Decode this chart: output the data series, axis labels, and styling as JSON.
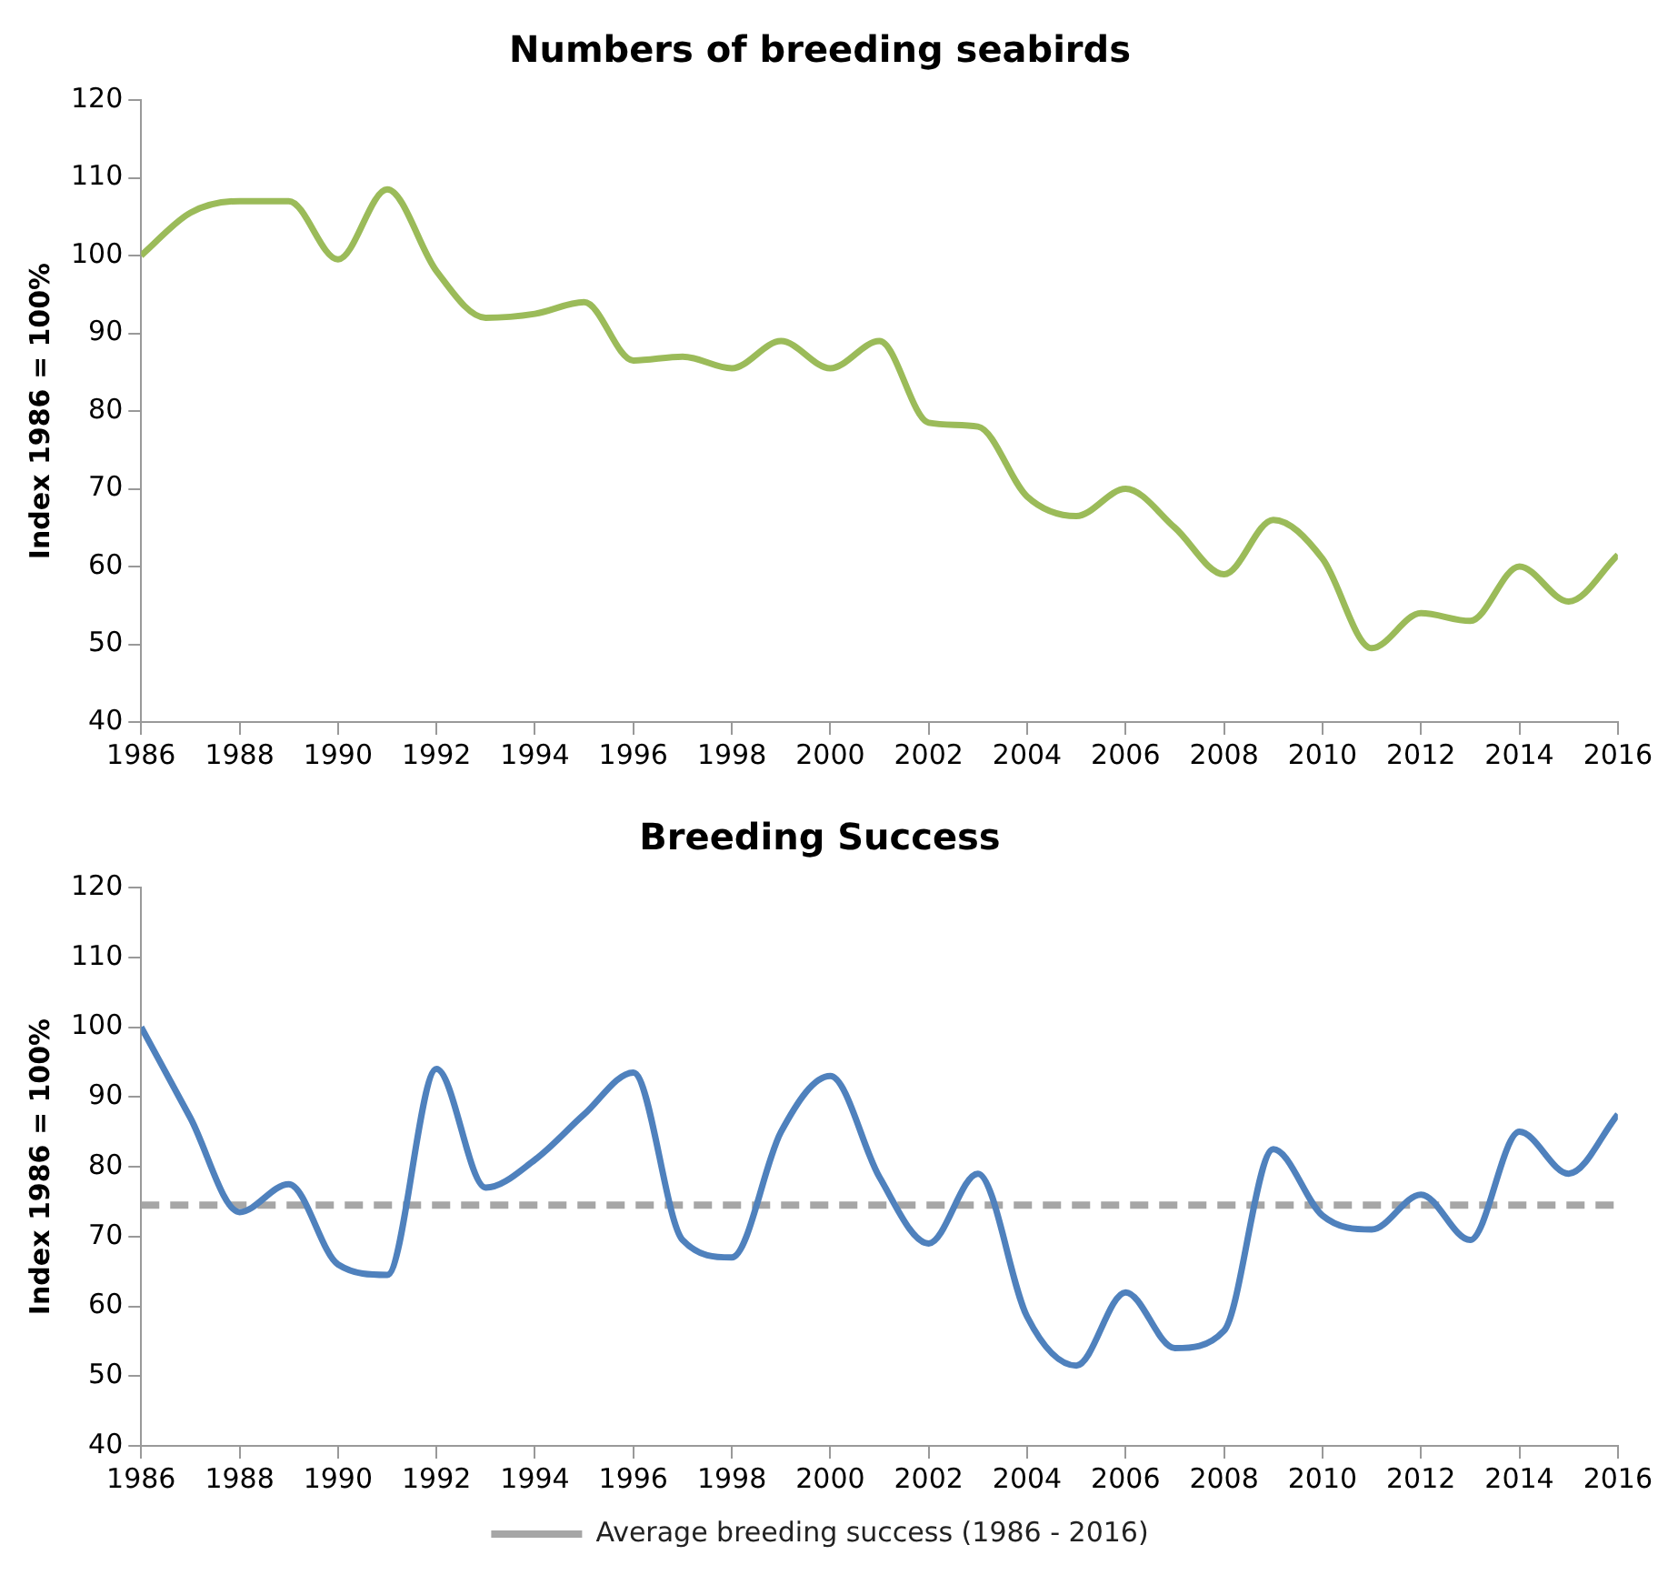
{
  "chart_data": [
    {
      "type": "line",
      "title": "Numbers of breeding seabirds",
      "ylabel": "Index 1986 = 100%",
      "x": [
        1986,
        1987,
        1988,
        1989,
        1990,
        1991,
        1992,
        1993,
        1994,
        1995,
        1996,
        1997,
        1998,
        1999,
        2000,
        2001,
        2002,
        2003,
        2004,
        2005,
        2006,
        2007,
        2008,
        2009,
        2010,
        2011,
        2012,
        2013,
        2014,
        2015,
        2016
      ],
      "series": [
        {
          "color": "#9bbb59",
          "values": [
            100,
            105.5,
            107,
            107,
            99.5,
            108.5,
            98,
            92,
            92.5,
            94,
            86.5,
            87,
            85.5,
            89,
            85.5,
            89,
            78.5,
            78,
            69,
            66.5,
            70,
            65,
            59,
            66,
            61,
            49.5,
            54,
            53,
            60,
            55.5,
            61.5
          ]
        }
      ],
      "xlim": [
        1986,
        2016
      ],
      "xticks": [
        1986,
        1988,
        1990,
        1992,
        1994,
        1996,
        1998,
        2000,
        2002,
        2004,
        2006,
        2008,
        2010,
        2012,
        2014,
        2016
      ],
      "ylim": [
        40,
        120
      ],
      "yticks": [
        40,
        50,
        60,
        70,
        80,
        90,
        100,
        110,
        120
      ],
      "grid": false,
      "legend": false,
      "marker": "none",
      "line_style": "solid"
    },
    {
      "type": "line",
      "title": "Breeding Success",
      "ylabel": "Index 1986 = 100%",
      "x": [
        1986,
        1987,
        1988,
        1989,
        1990,
        1991,
        1992,
        1993,
        1994,
        1995,
        1996,
        1997,
        1998,
        1999,
        2000,
        2001,
        2002,
        2003,
        2004,
        2005,
        2006,
        2007,
        2008,
        2009,
        2010,
        2011,
        2012,
        2013,
        2014,
        2015,
        2016
      ],
      "series": [
        {
          "color": "#4f81bd",
          "values": [
            100,
            87,
            73.5,
            77.5,
            66,
            64.5,
            94,
            77,
            81,
            87.5,
            93.5,
            69.5,
            67,
            85,
            93,
            78.5,
            69,
            79,
            58.5,
            51.5,
            62,
            54,
            56.5,
            82.5,
            73,
            71,
            76,
            69.5,
            85,
            79,
            87.5
          ]
        }
      ],
      "ref_lines": [
        {
          "axis": "y",
          "value": 74.5,
          "label": "Average breeding success (1986 - 2016)",
          "color": "#a6a6a6",
          "line_style": "dashed"
        }
      ],
      "xlim": [
        1986,
        2016
      ],
      "xticks": [
        1986,
        1988,
        1990,
        1992,
        1994,
        1996,
        1998,
        2000,
        2002,
        2004,
        2006,
        2008,
        2010,
        2012,
        2014,
        2016
      ],
      "ylim": [
        40,
        120
      ],
      "yticks": [
        40,
        50,
        60,
        70,
        80,
        90,
        100,
        110,
        120
      ],
      "grid": false,
      "legend": "bottom",
      "marker": "none",
      "line_style": "solid"
    }
  ]
}
